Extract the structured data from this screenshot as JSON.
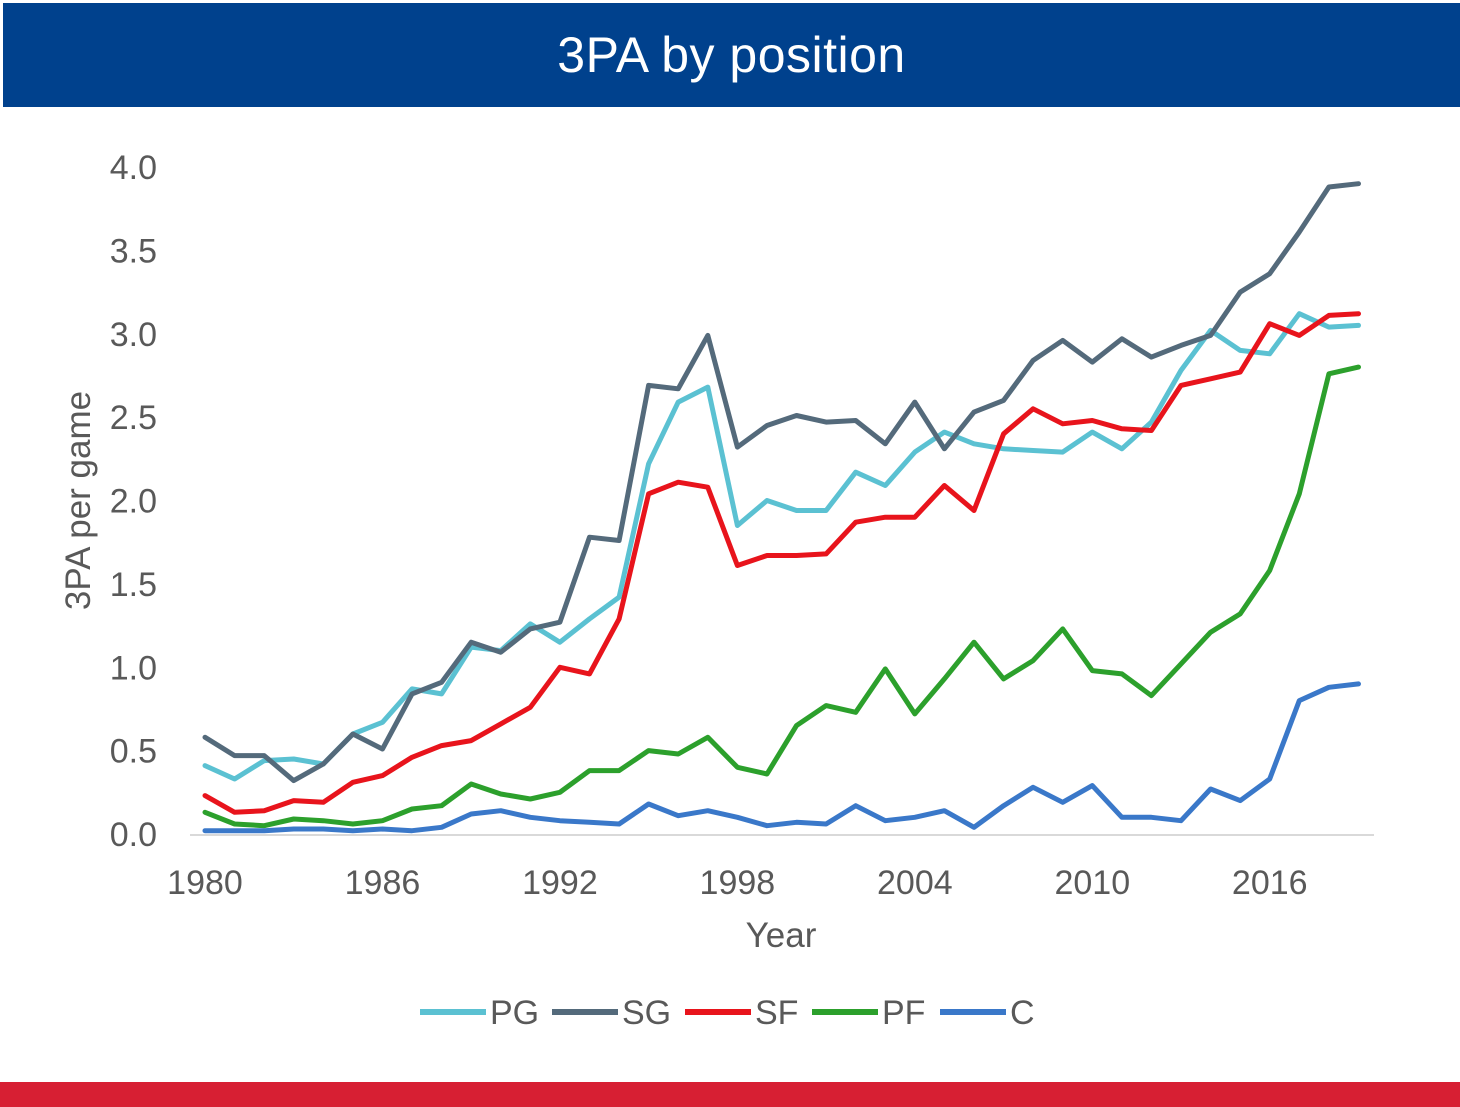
{
  "chart_data": {
    "type": "line",
    "title": "3PA by position",
    "xlabel": "Year",
    "ylabel": "3PA per game",
    "xlim": [
      1980,
      2019
    ],
    "ylim": [
      0,
      4
    ],
    "x_ticks": [
      1980,
      1986,
      1992,
      1998,
      2004,
      2010,
      2016
    ],
    "y_ticks": [
      "0.0",
      "0.5",
      "1.0",
      "1.5",
      "2.0",
      "2.5",
      "3.0",
      "3.5",
      "4.0"
    ],
    "y_tick_values": [
      0,
      0.5,
      1,
      1.5,
      2,
      2.5,
      3,
      3.5,
      4
    ],
    "grid": false,
    "legend_position": "bottom",
    "x": [
      1980,
      1981,
      1982,
      1983,
      1984,
      1985,
      1986,
      1987,
      1988,
      1989,
      1990,
      1991,
      1992,
      1993,
      1994,
      1995,
      1996,
      1997,
      1998,
      1999,
      2000,
      2001,
      2002,
      2003,
      2004,
      2005,
      2006,
      2007,
      2008,
      2009,
      2010,
      2011,
      2012,
      2013,
      2014,
      2015,
      2016,
      2017,
      2018,
      2019
    ],
    "series": [
      {
        "name": "PG",
        "color": "#5bc1d2",
        "values": [
          0.41,
          0.33,
          0.44,
          0.45,
          0.42,
          0.6,
          0.67,
          0.87,
          0.84,
          1.12,
          1.1,
          1.26,
          1.15,
          1.29,
          1.42,
          2.22,
          2.59,
          2.68,
          1.85,
          2.0,
          1.94,
          1.94,
          2.17,
          2.09,
          2.29,
          2.41,
          2.34,
          2.31,
          2.3,
          2.29,
          2.41,
          2.31,
          2.47,
          2.78,
          3.02,
          2.9,
          2.88,
          3.12,
          3.04,
          3.05
        ]
      },
      {
        "name": "SG",
        "color": "#546a7b",
        "values": [
          0.58,
          0.47,
          0.47,
          0.32,
          0.42,
          0.6,
          0.51,
          0.84,
          0.91,
          1.15,
          1.09,
          1.23,
          1.27,
          1.78,
          1.76,
          2.69,
          2.67,
          2.99,
          2.32,
          2.45,
          2.51,
          2.47,
          2.48,
          2.34,
          2.59,
          2.31,
          2.53,
          2.6,
          2.84,
          2.96,
          2.83,
          2.97,
          2.86,
          2.93,
          2.99,
          3.25,
          3.36,
          3.61,
          3.88,
          3.9
        ]
      },
      {
        "name": "SF",
        "color": "#e8141c",
        "values": [
          0.23,
          0.13,
          0.14,
          0.2,
          0.19,
          0.31,
          0.35,
          0.46,
          0.53,
          0.56,
          0.66,
          0.76,
          1.0,
          0.96,
          1.29,
          2.04,
          2.11,
          2.08,
          1.61,
          1.67,
          1.67,
          1.68,
          1.87,
          1.9,
          1.9,
          2.09,
          1.94,
          2.4,
          2.55,
          2.46,
          2.48,
          2.43,
          2.42,
          2.69,
          2.73,
          2.77,
          3.06,
          2.99,
          3.11,
          3.12
        ]
      },
      {
        "name": "PF",
        "color": "#2ca02c",
        "values": [
          0.13,
          0.06,
          0.05,
          0.09,
          0.08,
          0.06,
          0.08,
          0.15,
          0.17,
          0.3,
          0.24,
          0.21,
          0.25,
          0.38,
          0.38,
          0.5,
          0.48,
          0.58,
          0.4,
          0.36,
          0.65,
          0.77,
          0.73,
          0.99,
          0.72,
          0.93,
          1.15,
          0.93,
          1.04,
          1.23,
          0.98,
          0.96,
          0.83,
          1.02,
          1.21,
          1.32,
          1.58,
          2.04,
          2.76,
          2.8
        ]
      },
      {
        "name": "C",
        "color": "#3a78c9",
        "values": [
          0.02,
          0.02,
          0.02,
          0.03,
          0.03,
          0.02,
          0.03,
          0.02,
          0.04,
          0.12,
          0.14,
          0.1,
          0.08,
          0.07,
          0.06,
          0.18,
          0.11,
          0.14,
          0.1,
          0.05,
          0.07,
          0.06,
          0.17,
          0.08,
          0.1,
          0.14,
          0.04,
          0.17,
          0.28,
          0.19,
          0.29,
          0.1,
          0.1,
          0.08,
          0.27,
          0.2,
          0.33,
          0.8,
          0.88,
          0.9
        ]
      }
    ]
  }
}
